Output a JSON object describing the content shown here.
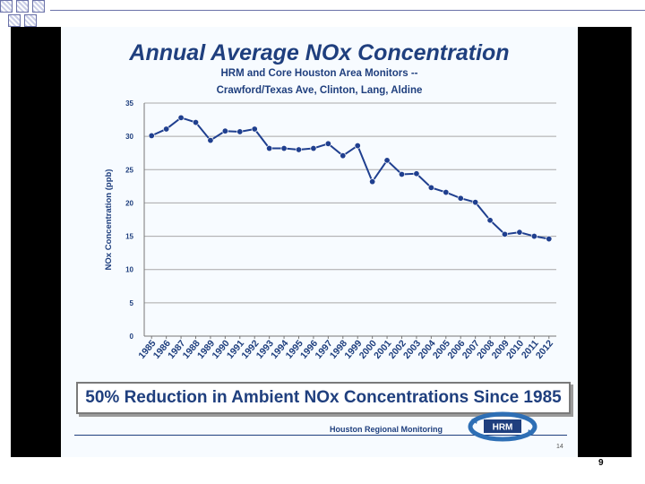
{
  "chart_data": {
    "type": "line",
    "title": "Annual Average NOx Concentration",
    "subtitle_lines": [
      "HRM and Core Houston Area Monitors --",
      "Crawford/Texas Ave, Clinton, Lang, Aldine"
    ],
    "xlabel": "",
    "ylabel": "NOx Concentration (ppb)",
    "ylim": [
      0,
      35
    ],
    "yticks": [
      "0",
      "5",
      "10",
      "15",
      "20",
      "25",
      "30",
      "35"
    ],
    "grid": true,
    "categories": [
      "1985",
      "1986",
      "1987",
      "1988",
      "1989",
      "1990",
      "1991",
      "1992",
      "1993",
      "1994",
      "1995",
      "1996",
      "1997",
      "1998",
      "1999",
      "2000",
      "2001",
      "2002",
      "2003",
      "2004",
      "2005",
      "2006",
      "2007",
      "2008",
      "2009",
      "2010",
      "2011",
      "2012"
    ],
    "series": [
      {
        "name": "Annual Average NOx",
        "values": [
          30.1,
          31.1,
          32.8,
          32.1,
          29.4,
          30.8,
          30.7,
          31.1,
          28.2,
          28.2,
          28.0,
          28.2,
          28.9,
          27.1,
          28.6,
          23.2,
          26.4,
          24.3,
          24.4,
          22.3,
          21.6,
          20.7,
          20.1,
          17.4,
          15.3,
          15.6,
          15.0,
          14.6
        ]
      }
    ],
    "color": "#1f3f8f"
  },
  "banner": "50% Reduction in Ambient NOx Concentrations Since 1985",
  "footer": {
    "org": "Houston Regional Monitoring",
    "logo_text": "HRM",
    "slide_number": "14"
  },
  "page_number": "9"
}
